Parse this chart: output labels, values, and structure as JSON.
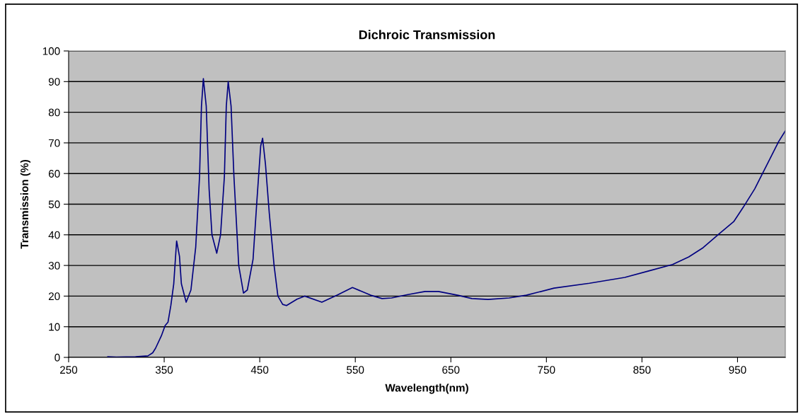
{
  "chart_data": {
    "type": "line",
    "title": "Dichroic Transmission",
    "xlabel": "Wavelength(nm)",
    "ylabel": "Transmission (%)",
    "xlim": [
      250,
      1000
    ],
    "xticks": [
      250,
      350,
      450,
      550,
      650,
      750,
      850,
      950
    ],
    "ylim": [
      0,
      100
    ],
    "yticks": [
      0,
      10,
      20,
      30,
      40,
      50,
      60,
      70,
      80,
      90,
      100
    ],
    "grid": "y",
    "marker": "none",
    "line_style": "solid",
    "series": [
      {
        "color": "#000080",
        "x": [
          291,
          300,
          320,
          333,
          338,
          341,
          347,
          351,
          354,
          357,
          360,
          363,
          366,
          368,
          373,
          378,
          383,
          387,
          389,
          391,
          394,
          397,
          400,
          405,
          409,
          413,
          415,
          417,
          420,
          423,
          428,
          433,
          437,
          443,
          447,
          451,
          453,
          456,
          460,
          465,
          469,
          474,
          478,
          489,
          497,
          515,
          531,
          547,
          566,
          578,
          588,
          605,
          623,
          637,
          657,
          672,
          689,
          711,
          729,
          758,
          795,
          832,
          857,
          882,
          899,
          914,
          931,
          946,
          956,
          968,
          980,
          993,
          1000
        ],
        "values": [
          0.2,
          0.1,
          0.2,
          0.5,
          1.5,
          3,
          7,
          10.4,
          11.5,
          17,
          24,
          38,
          33,
          24,
          18,
          22,
          36,
          59,
          82,
          91,
          82,
          55,
          40,
          34,
          40,
          59,
          82,
          90,
          82,
          59,
          30,
          21,
          22,
          32,
          51,
          69,
          71.5,
          63,
          47,
          30,
          20,
          17.3,
          16.9,
          19,
          20,
          18,
          20.3,
          22.8,
          20.3,
          19.2,
          19.4,
          20.5,
          21.5,
          21.5,
          20.3,
          19.2,
          18.9,
          19.4,
          20.3,
          22.6,
          24.2,
          26.1,
          28.2,
          30.3,
          32.8,
          35.8,
          40.4,
          44.3,
          49,
          55,
          62.4,
          70.4,
          73.9
        ]
      }
    ]
  }
}
